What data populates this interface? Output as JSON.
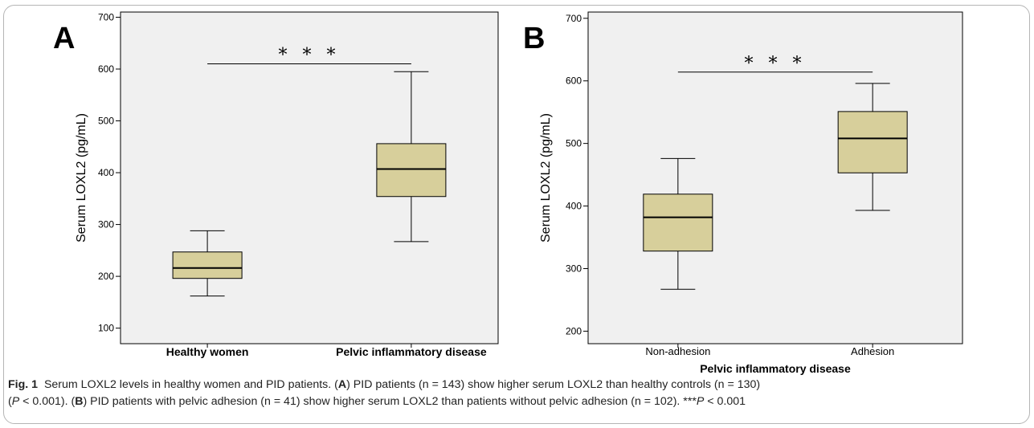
{
  "chart_data": [
    {
      "type": "box",
      "panel": "A",
      "ylabel": "Serum LOXL2 (pg/mL)",
      "xlabel": "",
      "ylim": [
        70,
        710
      ],
      "yticks": [
        100,
        200,
        300,
        400,
        500,
        600,
        700
      ],
      "categories": [
        "Healthy women",
        "Pelvic inflammatory disease"
      ],
      "boxes": [
        {
          "min": 162,
          "q1": 196,
          "median": 216,
          "q3": 247,
          "max": 288
        },
        {
          "min": 267,
          "q1": 354,
          "median": 407,
          "q3": 456,
          "max": 595
        }
      ],
      "significance": {
        "label": "* * *",
        "level": 610
      }
    },
    {
      "type": "box",
      "panel": "B",
      "ylabel": "Serum LOXL2 (pg/mL)",
      "xlabel": "Pelvic inflammatory disease",
      "ylim": [
        180,
        710
      ],
      "yticks": [
        200,
        300,
        400,
        500,
        600,
        700
      ],
      "categories": [
        "Non-adhesion",
        "Adhesion"
      ],
      "boxes": [
        {
          "min": 267,
          "q1": 328,
          "median": 382,
          "q3": 419,
          "max": 476
        },
        {
          "min": 393,
          "q1": 453,
          "median": 508,
          "q3": 551,
          "max": 596
        }
      ],
      "significance": {
        "label": "* * *",
        "level": 614
      }
    }
  ],
  "colors": {
    "box_fill": "#d7cf9b",
    "plot_bg": "#f0f0f0",
    "line": "#000000"
  },
  "caption": {
    "fig_label": "Fig. 1",
    "line1_a": "Serum LOXL2 levels in healthy women and PID patients. (",
    "line1_b": "A",
    "line1_c": ") PID patients (n = 143) show higher serum LOXL2 than healthy controls (n = 130)",
    "line2_a": "(",
    "line2_b": "P",
    "line2_c": " < 0.001). (",
    "line2_d": "B",
    "line2_e": ") PID patients with pelvic adhesion (n = 41) show higher serum LOXL2 than patients without pelvic adhesion (n = 102). ***",
    "line2_f": "P",
    "line2_g": " < 0.001"
  }
}
